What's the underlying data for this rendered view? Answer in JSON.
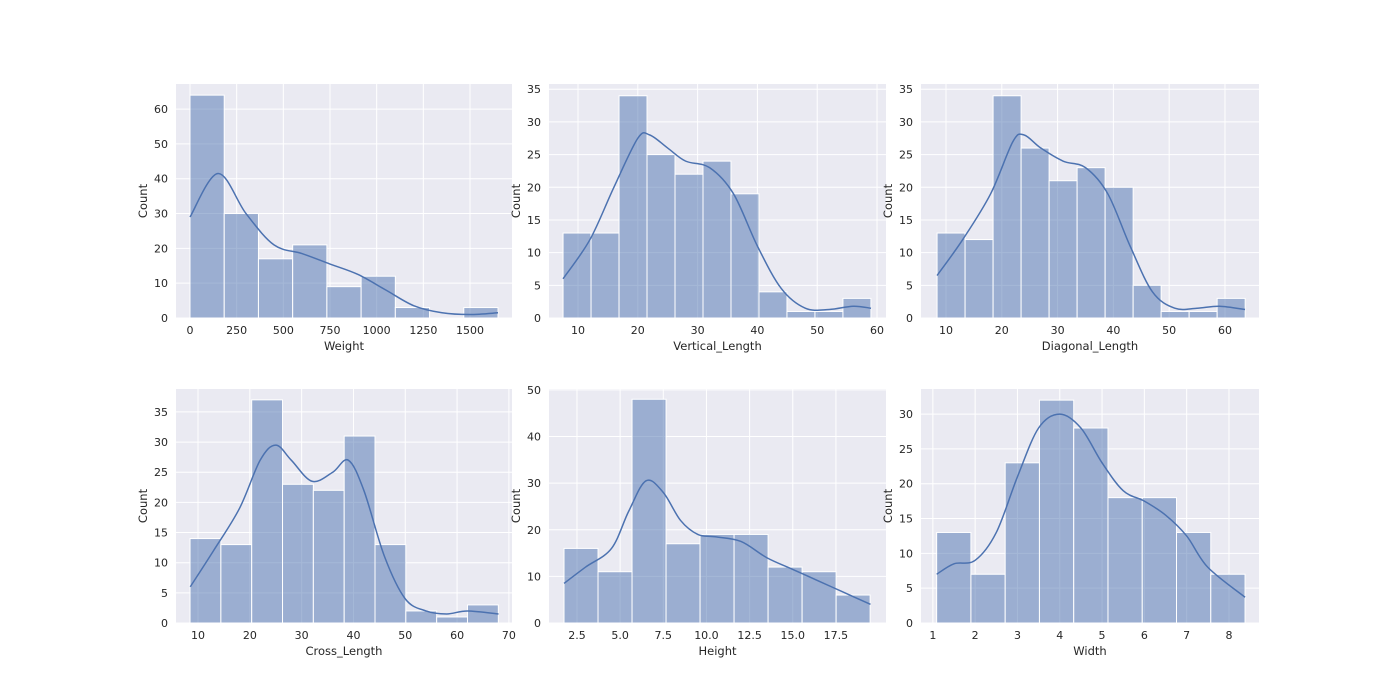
{
  "chart_data": [
    {
      "type": "histogram",
      "xlabel": "Weight",
      "ylabel": "Count",
      "color": "#4c72b0",
      "grid": true,
      "bins": [
        0,
        183.3,
        366.7,
        550,
        733.3,
        916.7,
        1100,
        1283.3,
        1466.7,
        1650
      ],
      "values": [
        64,
        30,
        17,
        21,
        9,
        12,
        3,
        0,
        3
      ],
      "line": {
        "x": [
          0,
          150,
          300,
          450,
          600,
          750,
          900,
          1050,
          1200,
          1350,
          1500,
          1650
        ],
        "values": [
          29,
          41.5,
          30,
          21,
          18.5,
          15.5,
          12.5,
          8,
          3.5,
          1.5,
          1,
          1.5
        ]
      },
      "xlim": [
        -75,
        1725
      ],
      "xticks": [
        0,
        250,
        500,
        750,
        1000,
        1250,
        1500
      ],
      "ylim": [
        0,
        67.2
      ],
      "yticks": [
        0,
        10,
        20,
        30,
        40,
        50,
        60
      ]
    },
    {
      "type": "histogram",
      "xlabel": "Vertical_Length",
      "ylabel": "Count",
      "color": "#4c72b0",
      "grid": true,
      "bins": [
        7.5,
        12.18,
        16.86,
        21.54,
        26.22,
        30.9,
        35.58,
        40.26,
        44.94,
        49.62,
        54.3,
        58.98
      ],
      "values": [
        13,
        13,
        34,
        25,
        22,
        24,
        19,
        4,
        1,
        1,
        3
      ],
      "line": {
        "x": [
          7.5,
          12,
          16,
          20,
          22,
          25,
          28,
          32,
          36,
          40,
          44,
          48,
          52,
          56,
          59
        ],
        "values": [
          6,
          12,
          20,
          27.5,
          28,
          26,
          24,
          23,
          19,
          11,
          4.5,
          1.5,
          1.3,
          1.8,
          1.5
        ]
      },
      "xlim": [
        5.15,
        61.5
      ],
      "xticks": [
        10,
        20,
        30,
        40,
        50,
        60
      ],
      "ylim": [
        0,
        35.8
      ],
      "yticks": [
        0,
        5,
        10,
        15,
        20,
        25,
        30,
        35
      ]
    },
    {
      "type": "histogram",
      "xlabel": "Diagonal_Length",
      "ylabel": "Count",
      "color": "#4c72b0",
      "grid": true,
      "bins": [
        8.4,
        13.42,
        18.44,
        23.46,
        28.48,
        33.5,
        38.52,
        43.54,
        48.56,
        53.58,
        58.6,
        63.62
      ],
      "values": [
        13,
        12,
        34,
        26,
        21,
        23,
        20,
        5,
        1,
        1,
        3
      ],
      "line": {
        "x": [
          8.4,
          13,
          18,
          22,
          24,
          27,
          31,
          35,
          39,
          43,
          47,
          51,
          55,
          59,
          63.6
        ],
        "values": [
          6.5,
          12,
          19,
          27,
          28,
          26,
          24,
          23,
          19,
          11,
          4,
          1.5,
          1.5,
          1.8,
          1.3
        ]
      },
      "xlim": [
        5.52,
        66.1
      ],
      "xticks": [
        10,
        20,
        30,
        40,
        50,
        60
      ],
      "ylim": [
        0,
        35.8
      ],
      "yticks": [
        0,
        5,
        10,
        15,
        20,
        25,
        30,
        35
      ]
    },
    {
      "type": "histogram",
      "xlabel": "Cross_Length",
      "ylabel": "Count",
      "color": "#4c72b0",
      "grid": true,
      "bins": [
        8.46,
        14.41,
        20.36,
        26.31,
        32.26,
        38.21,
        44.16,
        50.11,
        56.06,
        62.01,
        67.96
      ],
      "values": [
        14,
        13,
        37,
        23,
        22,
        31,
        13,
        2,
        1,
        3
      ],
      "line": {
        "x": [
          8.5,
          13,
          18,
          22,
          25,
          28,
          32,
          36,
          39,
          42,
          46,
          50,
          54,
          58,
          62,
          68
        ],
        "values": [
          6,
          12,
          19,
          27,
          29.5,
          27,
          23.5,
          25,
          27,
          22,
          11,
          4,
          2,
          1.5,
          2,
          1.5
        ]
      },
      "xlim": [
        5.75,
        70.6
      ],
      "xticks": [
        10,
        20,
        30,
        40,
        50,
        60,
        70
      ],
      "ylim": [
        0,
        38.8
      ],
      "yticks": [
        0,
        5,
        10,
        15,
        20,
        25,
        30,
        35
      ]
    },
    {
      "type": "histogram",
      "xlabel": "Height",
      "ylabel": "Count",
      "color": "#4c72b0",
      "grid": true,
      "bins": [
        1.75,
        3.72,
        5.69,
        7.66,
        9.63,
        11.6,
        13.57,
        15.54,
        17.51,
        19.48
      ],
      "values": [
        16,
        11,
        48,
        17,
        19,
        19,
        12,
        11,
        6
      ],
      "line": {
        "x": [
          1.75,
          3,
          4.5,
          5.5,
          6.5,
          7.5,
          8.5,
          9.5,
          10.5,
          12,
          13.5,
          15,
          16.5,
          18,
          19.5
        ],
        "values": [
          8.5,
          12,
          16,
          24,
          30.5,
          28,
          22,
          19,
          18.5,
          17.5,
          14,
          11.5,
          9,
          6.5,
          4
        ]
      },
      "xlim": [
        0.88,
        20.4
      ],
      "xticks": [
        2.5,
        {
          "value": 5,
          "label": "5.0"
        },
        7.5,
        {
          "value": 10,
          "label": "10.0"
        },
        12.5,
        {
          "value": 15,
          "label": "15.0"
        },
        17.5
      ],
      "ylim": [
        0,
        50.2
      ],
      "yticks": [
        0,
        10,
        20,
        30,
        40,
        50
      ]
    },
    {
      "type": "histogram",
      "xlabel": "Width",
      "ylabel": "Count",
      "color": "#4c72b0",
      "grid": true,
      "bins": [
        1.09,
        1.9,
        2.71,
        3.52,
        4.33,
        5.14,
        5.95,
        6.76,
        7.57,
        8.38
      ],
      "values": [
        13,
        7,
        23,
        32,
        28,
        18,
        18,
        13,
        7
      ],
      "line": {
        "x": [
          1.09,
          1.5,
          2,
          2.5,
          3,
          3.5,
          4,
          4.5,
          5,
          5.5,
          6,
          6.5,
          7,
          7.5,
          8.38
        ],
        "values": [
          7,
          8.5,
          9,
          13,
          21,
          28,
          30,
          28,
          23,
          19,
          17.5,
          15.5,
          12.5,
          8,
          3.7
        ]
      },
      "xlim": [
        0.72,
        8.71
      ],
      "xticks": [
        1,
        2,
        3,
        4,
        5,
        6,
        7,
        8
      ],
      "ylim": [
        0,
        33.6
      ],
      "yticks": [
        0,
        5,
        10,
        15,
        20,
        25,
        30
      ]
    }
  ]
}
